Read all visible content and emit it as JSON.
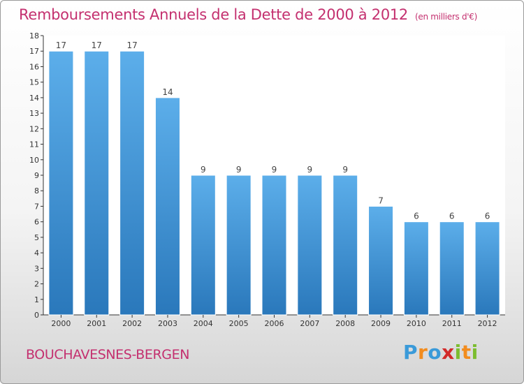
{
  "chart_data": {
    "type": "bar",
    "title": "Remboursements Annuels de la Dette de 2000 à 2012",
    "unit": "(en milliers d'€)",
    "categories": [
      "2000",
      "2001",
      "2002",
      "2003",
      "2004",
      "2005",
      "2006",
      "2007",
      "2008",
      "2009",
      "2010",
      "2011",
      "2012"
    ],
    "values": [
      17,
      17,
      17,
      14,
      9,
      9,
      9,
      9,
      9,
      7,
      6,
      6,
      6
    ],
    "data_labels": [
      "17",
      "17",
      "17",
      "14",
      "9",
      "9",
      "9",
      "9",
      "9",
      "7",
      "6",
      "6",
      "6"
    ],
    "ylim": [
      0,
      18
    ],
    "yticks": [
      "0",
      "1",
      "2",
      "3",
      "4",
      "5",
      "6",
      "7",
      "8",
      "9",
      "10",
      "11",
      "12",
      "13",
      "14",
      "15",
      "16",
      "17",
      "18"
    ],
    "grid": false,
    "legend": "none",
    "bar_color_top": "#5caeea",
    "bar_color_bottom": "#2a78bb"
  },
  "footer": {
    "city": "BOUCHAVESNES-BERGEN"
  },
  "brand": {
    "letters": [
      "P",
      "r",
      "o",
      "x",
      "i",
      "t",
      "i"
    ],
    "colors": [
      "#3a9ad9",
      "#f28c1e",
      "#3a9ad9",
      "#d22a2a",
      "#7cbd2f",
      "#f28c1e",
      "#7cbd2f"
    ]
  }
}
